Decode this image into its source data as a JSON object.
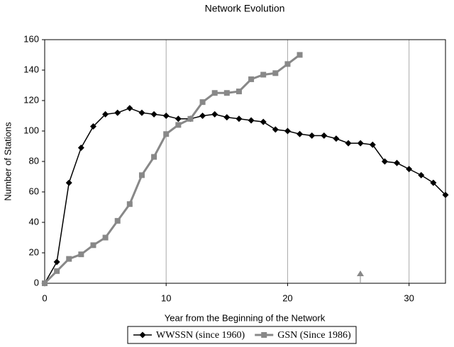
{
  "chart_data": {
    "type": "line",
    "title": "Network Evolution",
    "xlabel": "Year from the Beginning of the Network",
    "ylabel": "Number of Stations",
    "xlim": [
      0,
      33
    ],
    "xticks": [
      0,
      10,
      20,
      30
    ],
    "ylim": [
      0,
      160
    ],
    "yticks": [
      0,
      20,
      40,
      60,
      80,
      100,
      120,
      140,
      160
    ],
    "grid": "x",
    "legend": "bottom",
    "series": [
      {
        "name": "WWSSN (since 1960)",
        "color": "#000000",
        "marker": "diamond",
        "x": [
          0,
          1,
          2,
          3,
          4,
          5,
          6,
          7,
          8,
          9,
          10,
          11,
          12,
          13,
          14,
          15,
          16,
          17,
          18,
          19,
          20,
          21,
          22,
          23,
          24,
          25,
          26,
          27,
          28,
          29,
          30,
          31,
          32,
          33
        ],
        "values": [
          0,
          14,
          66,
          89,
          103,
          111,
          112,
          115,
          112,
          111,
          110,
          108,
          108,
          110,
          111,
          109,
          108,
          107,
          106,
          101,
          100,
          98,
          97,
          97,
          95,
          92,
          92,
          91,
          80,
          79,
          75,
          71,
          66,
          58
        ]
      },
      {
        "name": "GSN (Since 1986)",
        "color": "#888888",
        "marker": "square",
        "x": [
          0,
          1,
          2,
          3,
          4,
          5,
          6,
          7,
          8,
          9,
          10,
          11,
          12,
          13,
          14,
          15,
          16,
          17,
          18,
          19,
          20,
          21
        ],
        "values": [
          0,
          8,
          16,
          19,
          25,
          30,
          41,
          52,
          71,
          83,
          98,
          104,
          108,
          119,
          125,
          125,
          126,
          134,
          137,
          138,
          144,
          150
        ]
      }
    ]
  }
}
